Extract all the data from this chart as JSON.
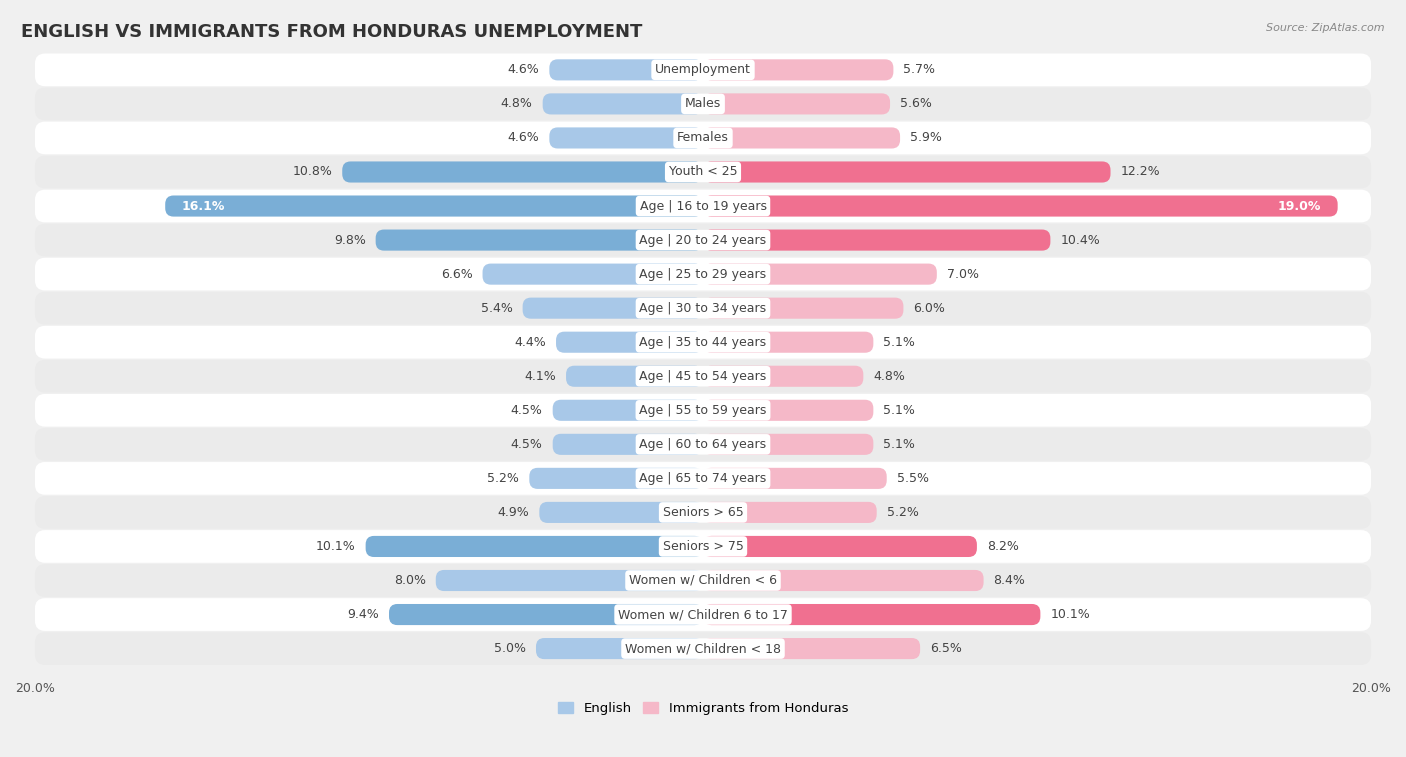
{
  "title": "ENGLISH VS IMMIGRANTS FROM HONDURAS UNEMPLOYMENT",
  "source": "Source: ZipAtlas.com",
  "categories": [
    "Unemployment",
    "Males",
    "Females",
    "Youth < 25",
    "Age | 16 to 19 years",
    "Age | 20 to 24 years",
    "Age | 25 to 29 years",
    "Age | 30 to 34 years",
    "Age | 35 to 44 years",
    "Age | 45 to 54 years",
    "Age | 55 to 59 years",
    "Age | 60 to 64 years",
    "Age | 65 to 74 years",
    "Seniors > 65",
    "Seniors > 75",
    "Women w/ Children < 6",
    "Women w/ Children 6 to 17",
    "Women w/ Children < 18"
  ],
  "english_values": [
    4.6,
    4.8,
    4.6,
    10.8,
    16.1,
    9.8,
    6.6,
    5.4,
    4.4,
    4.1,
    4.5,
    4.5,
    5.2,
    4.9,
    10.1,
    8.0,
    9.4,
    5.0
  ],
  "honduras_values": [
    5.7,
    5.6,
    5.9,
    12.2,
    19.0,
    10.4,
    7.0,
    6.0,
    5.1,
    4.8,
    5.1,
    5.1,
    5.5,
    5.2,
    8.2,
    8.4,
    10.1,
    6.5
  ],
  "english_color_normal": "#a8c8e8",
  "english_color_highlight": "#7aaed6",
  "honduras_color_normal": "#f5b8c8",
  "honduras_color_highlight": "#f07090",
  "axis_max": 20.0,
  "bg_color": "#f0f0f0",
  "row_color_even": "#ffffff",
  "row_color_odd": "#ebebeb",
  "legend_english": "English",
  "legend_honduras": "Immigrants from Honduras",
  "title_fontsize": 13,
  "label_fontsize": 9,
  "value_fontsize": 9
}
